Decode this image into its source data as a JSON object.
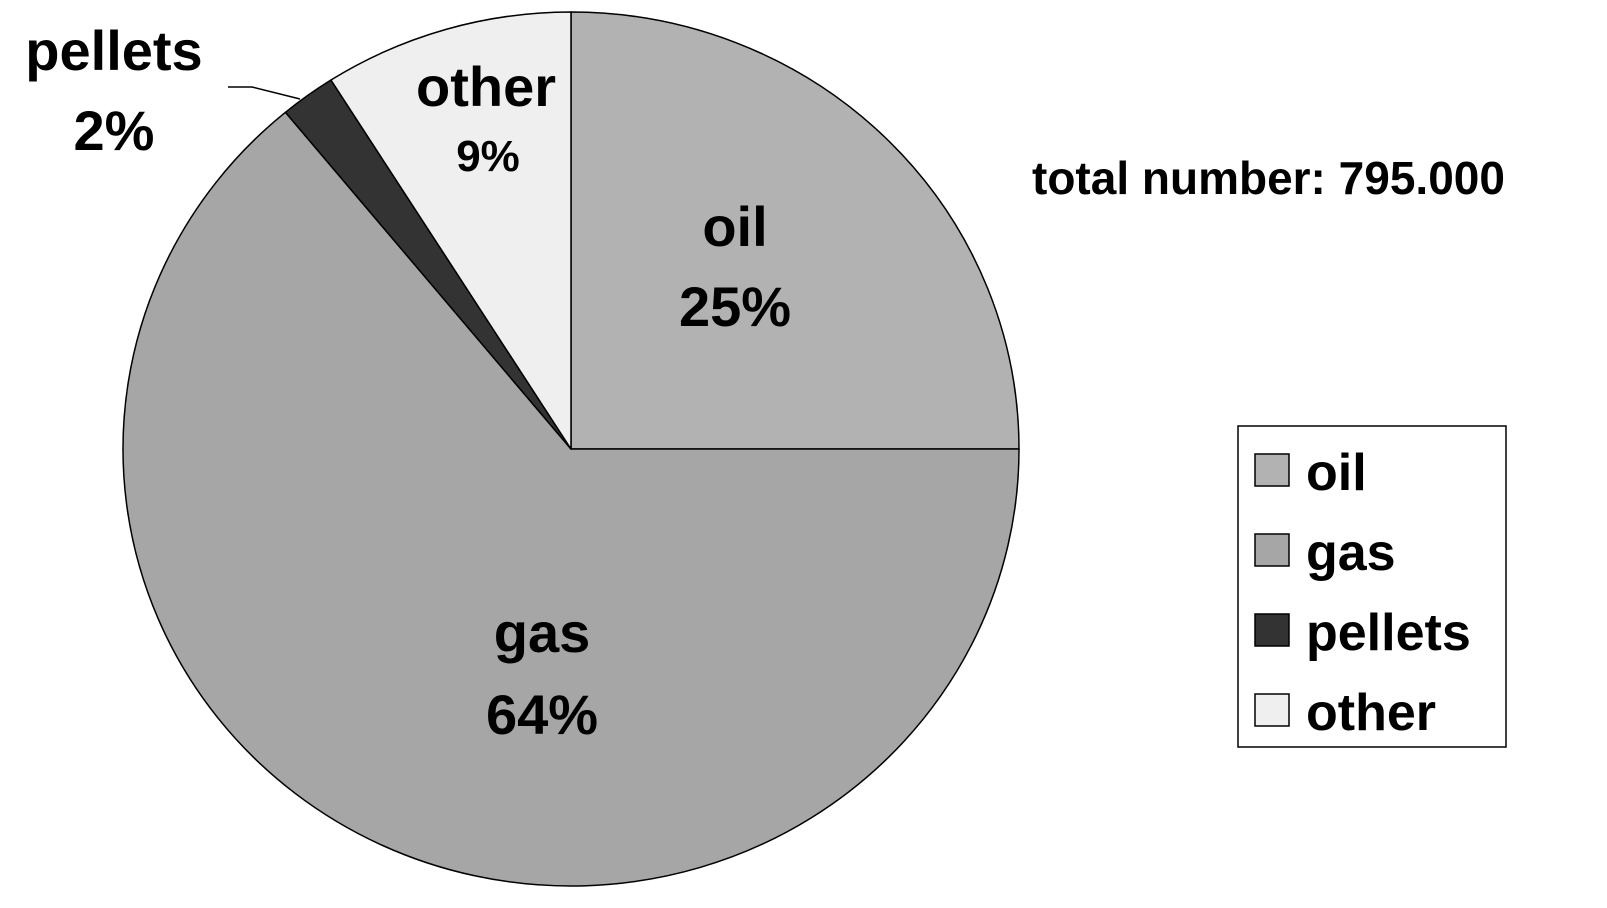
{
  "chart_data": {
    "type": "pie",
    "title": "",
    "annotation": "total number: 795.000",
    "slices": [
      {
        "label": "oil",
        "value": 25,
        "value_label": "25%",
        "color": "#b2b2b2"
      },
      {
        "label": "gas",
        "value": 64,
        "value_label": "64%",
        "color": "#a6a6a6"
      },
      {
        "label": "pellets",
        "value": 2,
        "value_label": "2%",
        "color": "#333333"
      },
      {
        "label": "other",
        "value": 9,
        "value_label": "9%",
        "color": "#efefef"
      }
    ],
    "start_angle_deg": 90,
    "direction": "clockwise",
    "legend": {
      "position": "right",
      "items": [
        "oil",
        "gas",
        "pellets",
        "other"
      ]
    }
  }
}
